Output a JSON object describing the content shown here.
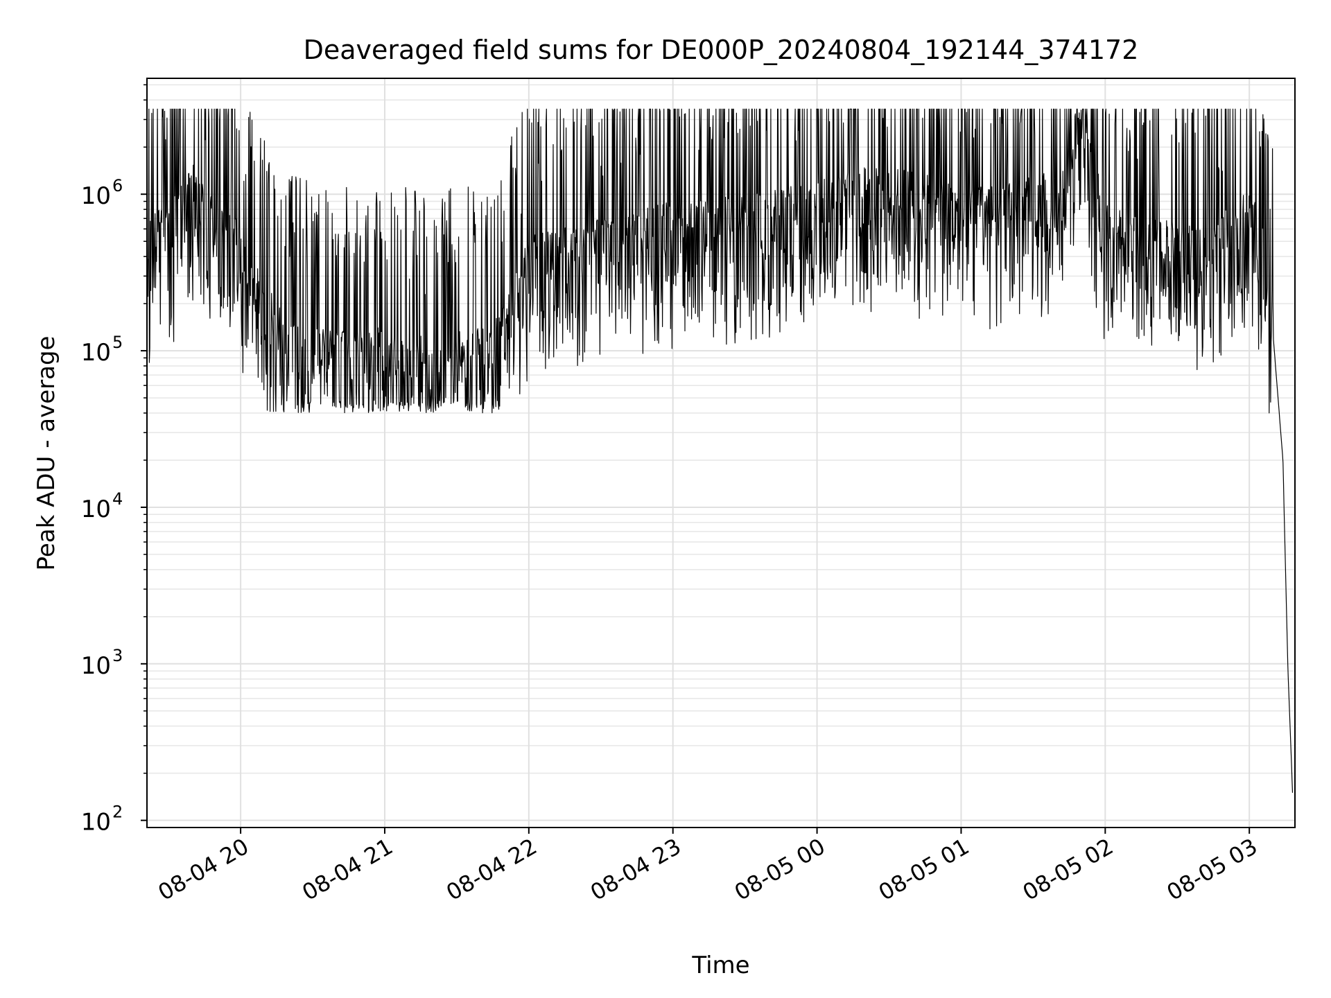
{
  "chart_data": {
    "type": "line",
    "title": "Deaveraged field sums for DE000P_20240804_192144_374172",
    "xlabel": "Time",
    "ylabel": "Peak ADU - average",
    "yscale": "log",
    "ylim": [
      90,
      5500000
    ],
    "xlim": [
      "2024-08-04 19:21",
      "2024-08-05 03:19"
    ],
    "grid": true,
    "line_color": "#000000",
    "x_ticks": [
      {
        "t": "2024-08-04 20:00",
        "label": "08-04 20"
      },
      {
        "t": "2024-08-04 21:00",
        "label": "08-04 21"
      },
      {
        "t": "2024-08-04 22:00",
        "label": "08-04 22"
      },
      {
        "t": "2024-08-04 23:00",
        "label": "08-04 23"
      },
      {
        "t": "2024-08-05 00:00",
        "label": "08-05 00"
      },
      {
        "t": "2024-08-05 01:00",
        "label": "08-05 01"
      },
      {
        "t": "2024-08-05 02:00",
        "label": "08-05 02"
      },
      {
        "t": "2024-08-05 03:00",
        "label": "08-05 03"
      }
    ],
    "y_ticks": [
      {
        "value": 100,
        "base": "10",
        "exp": "2"
      },
      {
        "value": 1000,
        "base": "10",
        "exp": "3"
      },
      {
        "value": 10000,
        "base": "10",
        "exp": "4"
      },
      {
        "value": 100000,
        "base": "10",
        "exp": "5"
      },
      {
        "value": 1000000,
        "base": "10",
        "exp": "6"
      }
    ],
    "series": [
      {
        "x": [
          "2024-08-04 19:21",
          "2024-08-04 19:30",
          "2024-08-04 19:40",
          "2024-08-04 19:45",
          "2024-08-04 19:50",
          "2024-08-04 19:55",
          "2024-08-04 20:00",
          "2024-08-04 20:10",
          "2024-08-04 20:20",
          "2024-08-04 20:30",
          "2024-08-04 20:45",
          "2024-08-04 21:00",
          "2024-08-04 21:15",
          "2024-08-04 21:30",
          "2024-08-04 21:45",
          "2024-08-04 22:00",
          "2024-08-04 22:30",
          "2024-08-04 23:00",
          "2024-08-04 23:30",
          "2024-08-05 00:00",
          "2024-08-05 00:20",
          "2024-08-05 00:40",
          "2024-08-05 01:00",
          "2024-08-05 01:20",
          "2024-08-05 01:40",
          "2024-08-05 01:50",
          "2024-08-05 02:00",
          "2024-08-05 02:20",
          "2024-08-05 02:40",
          "2024-08-05 03:00",
          "2024-08-05 03:05",
          "2024-08-05 03:10",
          "2024-08-05 03:14",
          "2024-08-05 03:16",
          "2024-08-05 03:18"
        ],
        "y": [
          400000,
          500000,
          900000,
          600000,
          500000,
          450000,
          350000,
          150000,
          90000,
          80000,
          75000,
          80000,
          70000,
          75000,
          80000,
          300000,
          400000,
          500000,
          550000,
          700000,
          900000,
          800000,
          600000,
          650000,
          800000,
          2500000,
          500000,
          400000,
          350000,
          600000,
          400000,
          120000,
          20000,
          1000,
          150
        ]
      }
    ]
  }
}
